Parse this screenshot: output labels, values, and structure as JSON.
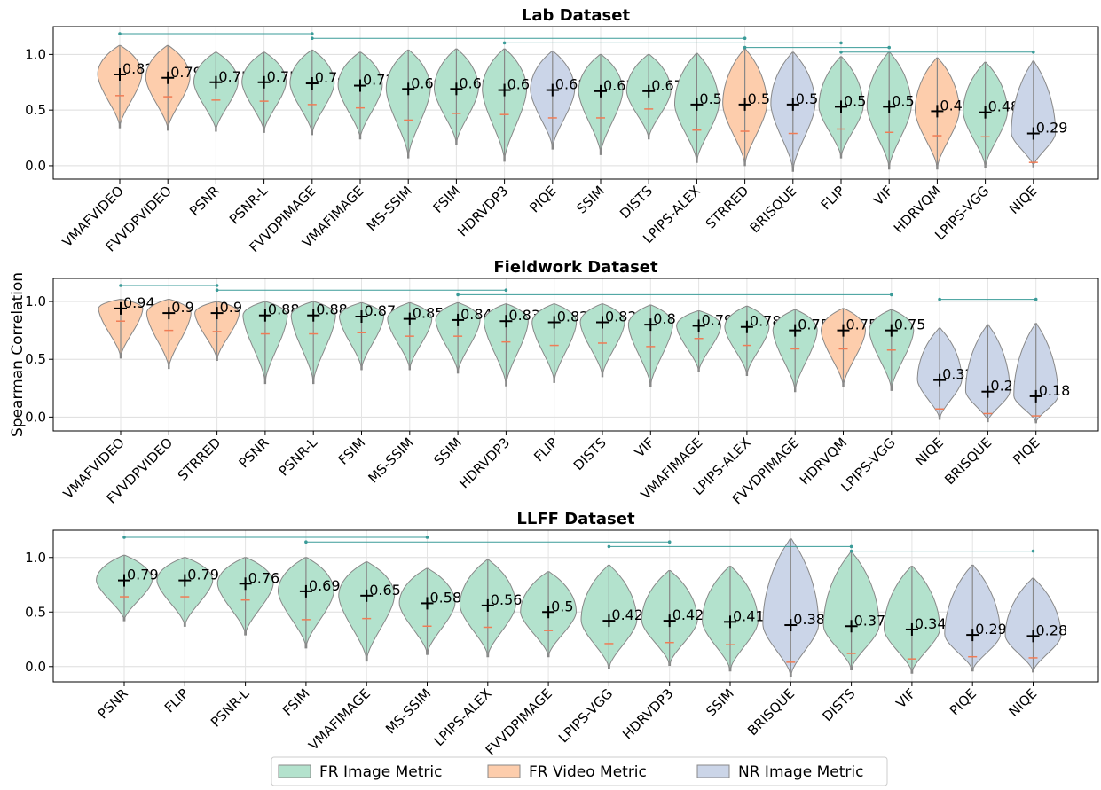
{
  "colors": {
    "FR Image Metric": "#b3e2cd",
    "FR Video Metric": "#fdcdac",
    "NR Image Metric": "#cbd5e8",
    "mean_tick": "#f07c55",
    "bracket": "#3a9b98",
    "outline": "#888888"
  },
  "ylabel": "Spearman Correlation",
  "legend": {
    "placement": "bottom-center",
    "items": [
      "FR Image Metric",
      "FR Video Metric",
      "NR Image Metric"
    ]
  },
  "chart_data": [
    {
      "type": "violin",
      "title": "Lab Dataset",
      "ylim": [
        -0.12,
        1.25
      ],
      "yticks": [
        "0.0",
        "0.5",
        "1.0"
      ],
      "grid": true,
      "categories": [
        "VMAFVIDEO",
        "FVVDPVIDEO",
        "PSNR",
        "PSNR-L",
        "FVVDPIMAGE",
        "VMAFIMAGE",
        "MS-SSIM",
        "FSIM",
        "HDRVDP3",
        "PIQE",
        "SSIM",
        "DISTS",
        "LPIPS-ALEX",
        "STRRED",
        "BRISQUE",
        "FLIP",
        "VIF",
        "HDRVQM",
        "LPIPS-VGG",
        "NIQE"
      ],
      "labels": [
        "0.82",
        "0.79",
        "0.75",
        "0.75",
        "0.74",
        "0.72",
        "0.69",
        "0.69",
        "0.68",
        "0.68",
        "0.67",
        "0.67",
        "0.55",
        "0.55",
        "0.55",
        "0.53",
        "0.53",
        "0.49",
        "0.48",
        "0.29"
      ],
      "medians": [
        0.82,
        0.79,
        0.75,
        0.75,
        0.74,
        0.72,
        0.69,
        0.69,
        0.68,
        0.68,
        0.67,
        0.67,
        0.55,
        0.55,
        0.55,
        0.53,
        0.53,
        0.49,
        0.48,
        0.29
      ],
      "lows": [
        0.63,
        0.62,
        0.59,
        0.58,
        0.55,
        0.52,
        0.41,
        0.47,
        0.46,
        0.43,
        0.43,
        0.51,
        0.32,
        0.31,
        0.29,
        0.33,
        0.3,
        0.27,
        0.26,
        0.03
      ],
      "mins": [
        0.34,
        0.32,
        0.31,
        0.3,
        0.28,
        0.24,
        0.07,
        0.19,
        0.04,
        0.15,
        0.1,
        0.24,
        0.03,
        0.0,
        -0.05,
        0.07,
        -0.03,
        -0.03,
        -0.02,
        -0.01
      ],
      "maxs": [
        1.08,
        1.08,
        1.02,
        1.02,
        1.04,
        1.02,
        1.04,
        1.05,
        1.05,
        1.03,
        1.0,
        1.0,
        1.01,
        1.05,
        1.02,
        0.98,
        1.02,
        0.97,
        0.93,
        0.94
      ],
      "groups": [
        "FR Video Metric",
        "FR Video Metric",
        "FR Image Metric",
        "FR Image Metric",
        "FR Image Metric",
        "FR Image Metric",
        "FR Image Metric",
        "FR Image Metric",
        "FR Image Metric",
        "NR Image Metric",
        "FR Image Metric",
        "FR Image Metric",
        "FR Image Metric",
        "FR Video Metric",
        "NR Image Metric",
        "FR Image Metric",
        "FR Image Metric",
        "FR Video Metric",
        "FR Image Metric",
        "NR Image Metric"
      ],
      "brackets": [
        [
          0,
          4
        ],
        [
          4,
          13
        ],
        [
          8,
          15
        ],
        [
          13,
          16
        ],
        [
          15,
          19
        ]
      ]
    },
    {
      "type": "violin",
      "title": "Fieldwork Dataset",
      "ylim": [
        -0.12,
        1.2
      ],
      "yticks": [
        "0.0",
        "0.5",
        "1.0"
      ],
      "grid": true,
      "categories": [
        "VMAFVIDEO",
        "FVVDPVIDEO",
        "STRRED",
        "PSNR",
        "PSNR-L",
        "FSIM",
        "MS-SSIM",
        "SSIM",
        "HDRVDP3",
        "FLIP",
        "DISTS",
        "VIF",
        "VMAFIMAGE",
        "LPIPS-ALEX",
        "FVVDPIMAGE",
        "HDRVQM",
        "LPIPS-VGG",
        "NIQE",
        "BRISQUE",
        "PIQE"
      ],
      "labels": [
        "0.94",
        "0.9",
        "0.9",
        "0.88",
        "0.88",
        "0.87",
        "0.85",
        "0.84",
        "0.83",
        "0.82",
        "0.82",
        "0.8",
        "0.79",
        "0.78",
        "0.75",
        "0.75",
        "0.75",
        "0.32",
        "0.22",
        "0.18"
      ],
      "medians": [
        0.94,
        0.9,
        0.9,
        0.88,
        0.88,
        0.87,
        0.85,
        0.84,
        0.83,
        0.82,
        0.82,
        0.8,
        0.79,
        0.78,
        0.75,
        0.75,
        0.75,
        0.32,
        0.22,
        0.18
      ],
      "lows": [
        0.83,
        0.75,
        0.74,
        0.72,
        0.72,
        0.73,
        0.7,
        0.7,
        0.65,
        0.62,
        0.64,
        0.61,
        0.68,
        0.62,
        0.59,
        0.59,
        0.58,
        0.07,
        0.03,
        0.01
      ],
      "mins": [
        0.51,
        0.42,
        0.49,
        0.29,
        0.29,
        0.41,
        0.41,
        0.38,
        0.27,
        0.3,
        0.35,
        0.26,
        0.39,
        0.36,
        0.22,
        0.26,
        0.23,
        -0.02,
        -0.04,
        -0.05
      ],
      "maxs": [
        1.02,
        1.02,
        1.0,
        1.0,
        1.0,
        0.99,
        0.99,
        0.99,
        0.98,
        0.98,
        0.98,
        0.97,
        0.92,
        0.96,
        0.93,
        0.94,
        0.93,
        0.77,
        0.8,
        0.81
      ],
      "groups": [
        "FR Video Metric",
        "FR Video Metric",
        "FR Video Metric",
        "FR Image Metric",
        "FR Image Metric",
        "FR Image Metric",
        "FR Image Metric",
        "FR Image Metric",
        "FR Image Metric",
        "FR Image Metric",
        "FR Image Metric",
        "FR Image Metric",
        "FR Image Metric",
        "FR Image Metric",
        "FR Image Metric",
        "FR Video Metric",
        "FR Image Metric",
        "NR Image Metric",
        "NR Image Metric",
        "NR Image Metric"
      ],
      "brackets": [
        [
          0,
          2
        ],
        [
          2,
          8
        ],
        [
          7,
          16
        ],
        [
          17,
          19
        ]
      ]
    },
    {
      "type": "violin",
      "title": "LLFF Dataset",
      "ylim": [
        -0.14,
        1.25
      ],
      "yticks": [
        "0.0",
        "0.5",
        "1.0"
      ],
      "grid": true,
      "categories": [
        "PSNR",
        "FLIP",
        "PSNR-L",
        "FSIM",
        "VMAFIMAGE",
        "MS-SSIM",
        "LPIPS-ALEX",
        "FVVDPIMAGE",
        "LPIPS-VGG",
        "HDRVDP3",
        "SSIM",
        "BRISQUE",
        "DISTS",
        "VIF",
        "PIQE",
        "NIQE"
      ],
      "labels": [
        "0.79",
        "0.79",
        "0.76",
        "0.69",
        "0.65",
        "0.58",
        "0.56",
        "0.5",
        "0.42",
        "0.42",
        "0.41",
        "0.38",
        "0.37",
        "0.34",
        "0.29",
        "0.28"
      ],
      "medians": [
        0.79,
        0.79,
        0.76,
        0.69,
        0.65,
        0.58,
        0.56,
        0.5,
        0.42,
        0.42,
        0.41,
        0.38,
        0.37,
        0.34,
        0.29,
        0.28
      ],
      "lows": [
        0.64,
        0.64,
        0.61,
        0.43,
        0.44,
        0.37,
        0.36,
        0.33,
        0.21,
        0.22,
        0.2,
        0.04,
        0.12,
        0.07,
        0.09,
        0.08
      ],
      "mins": [
        0.42,
        0.37,
        0.29,
        0.17,
        0.05,
        0.11,
        0.09,
        0.09,
        -0.02,
        0.01,
        -0.04,
        -0.09,
        -0.03,
        -0.06,
        -0.04,
        -0.05
      ],
      "maxs": [
        1.02,
        1.0,
        1.0,
        1.0,
        0.96,
        0.9,
        0.98,
        0.87,
        0.93,
        0.88,
        0.92,
        1.17,
        1.05,
        0.92,
        0.93,
        0.81
      ],
      "groups": [
        "FR Image Metric",
        "FR Image Metric",
        "FR Image Metric",
        "FR Image Metric",
        "FR Image Metric",
        "FR Image Metric",
        "FR Image Metric",
        "FR Image Metric",
        "FR Image Metric",
        "FR Image Metric",
        "FR Image Metric",
        "NR Image Metric",
        "FR Image Metric",
        "FR Image Metric",
        "NR Image Metric",
        "NR Image Metric"
      ],
      "brackets": [
        [
          0,
          5
        ],
        [
          3,
          9
        ],
        [
          8,
          12
        ],
        [
          12,
          15
        ]
      ]
    }
  ]
}
